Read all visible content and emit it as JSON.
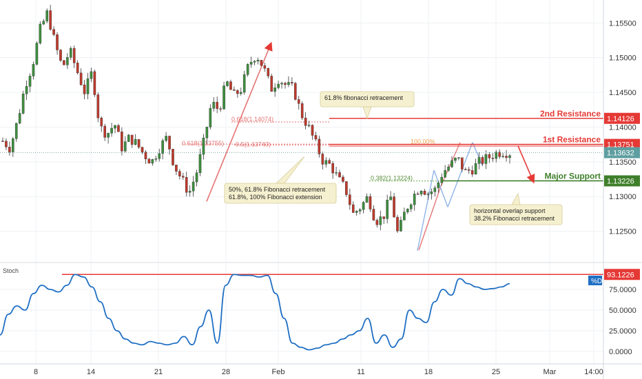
{
  "chart_data": [
    {
      "type": "candlestick",
      "title": "",
      "xlabel": "",
      "ylabel": "",
      "ylim": [
        1.1205,
        1.1583
      ],
      "grid": true,
      "y_ticks": [
        "1.15500",
        "1.15000",
        "1.14500",
        "1.14000",
        "1.13500",
        "1.13000",
        "1.12500"
      ],
      "x_ticks": [
        "8",
        "14",
        "21",
        "28",
        "Feb",
        "11",
        "18",
        "25",
        "Mar",
        "14:00"
      ],
      "colors": {
        "up": "#3d8f3d",
        "down": "#c0392b",
        "resistance": "#e53935",
        "support": "#3f7f2a",
        "fib": "#e57373"
      },
      "close_path": [
        1.138,
        1.137,
        1.141,
        1.146,
        1.149,
        1.154,
        1.1565,
        1.152,
        1.1485,
        1.151,
        1.148,
        1.145,
        1.148,
        1.14,
        1.139,
        1.1405,
        1.137,
        1.1385,
        1.1375,
        1.136,
        1.135,
        1.137,
        1.1385,
        1.1345,
        1.1325,
        1.1305,
        1.1335,
        1.138,
        1.1435,
        1.1425,
        1.1465,
        1.1445,
        1.1455,
        1.149,
        1.1505,
        1.1485,
        1.1455,
        1.147,
        1.146,
        1.1455,
        1.142,
        1.14,
        1.1375,
        1.135,
        1.1345,
        1.1325,
        1.131,
        1.1275,
        1.1285,
        1.13,
        1.1265,
        1.127,
        1.13,
        1.1245,
        1.128,
        1.13,
        1.1315,
        1.1305,
        1.131,
        1.1335,
        1.1345,
        1.1355,
        1.1335,
        1.134,
        1.135,
        1.1355,
        1.1362,
        1.1365,
        1.1363
      ],
      "levels": [
        {
          "label": "2nd Resistance",
          "value": "1.14126",
          "price": 1.14126
        },
        {
          "label": "1st Resistance",
          "value": "1.13751",
          "price": 1.13751
        },
        {
          "label": "Major Support",
          "value": "1.13226",
          "price": 1.13226
        }
      ],
      "last_price": {
        "value": "1.13632",
        "price": 1.13632
      },
      "fib_labels": [
        {
          "text": "0.618(1.14074)",
          "price": 1.14074
        },
        {
          "text": "0.618(1.13755)",
          "price": 1.13755
        },
        {
          "text": "0.5(1.13743)",
          "price": 1.13743
        },
        {
          "text": "100.00%",
          "price": 1.1375
        },
        {
          "text": "0.382(1.13224)",
          "price": 1.13224
        }
      ],
      "annotations": [
        "61.8% fibonacci retracement",
        "50%, 61.8% Fibonacci retracement\n61.8%, 100% Fibonacci extension",
        "horizontal overlap support\n38.2% Fibonacci retracement"
      ]
    },
    {
      "type": "line",
      "title": "Stoch",
      "ylim": [
        -5,
        100
      ],
      "y_ticks": [
        "75.0000",
        "50.0000",
        "25.0000",
        "0.0000"
      ],
      "series": [
        {
          "name": "%D",
          "color": "#1f6fc4",
          "values": [
            20,
            45,
            55,
            50,
            70,
            80,
            75,
            72,
            80,
            93,
            90,
            78,
            60,
            40,
            25,
            15,
            10,
            8,
            12,
            10,
            8,
            10,
            18,
            8,
            30,
            50,
            10,
            80,
            93,
            92,
            92,
            90,
            92,
            70,
            40,
            10,
            5,
            2,
            4,
            8,
            10,
            15,
            20,
            25,
            40,
            10,
            20,
            5,
            15,
            50,
            40,
            35,
            60,
            75,
            68,
            88,
            82,
            78,
            75,
            76,
            78,
            82
          ]
        }
      ],
      "reference_line": {
        "value": "93.1226",
        "price": 93.1226
      },
      "sample_dates": [
        "5",
        "6",
        "7",
        "8",
        "9",
        "10",
        "11",
        "12",
        "13",
        "14",
        "15",
        "16",
        "17",
        "18",
        "19",
        "20",
        "21",
        "22",
        "23",
        "24",
        "25",
        "26",
        "27",
        "28",
        "29",
        "30",
        "31",
        "1",
        "2",
        "3",
        "4",
        "5",
        "6",
        "7",
        "8",
        "9",
        "10",
        "11",
        "12",
        "13",
        "14",
        "15",
        "16",
        "17",
        "18",
        "19",
        "20",
        "21",
        "22",
        "23",
        "24",
        "25",
        "26"
      ]
    }
  ]
}
